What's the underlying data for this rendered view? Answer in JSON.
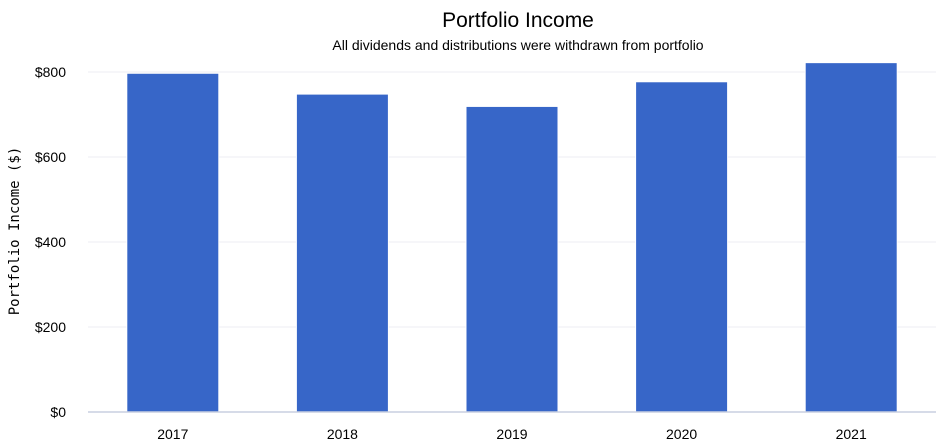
{
  "chart_data": {
    "type": "bar",
    "title": "Portfolio Income",
    "subtitle": "All dividends and distributions were withdrawn from portfolio",
    "xlabel": "",
    "ylabel": "Portfolio Income ($)",
    "categories": [
      "2017",
      "2018",
      "2019",
      "2020",
      "2021"
    ],
    "values": [
      797,
      748,
      719,
      777,
      822
    ],
    "ylim": [
      0,
      800
    ],
    "yticks": [
      0,
      200,
      400,
      600,
      800
    ],
    "ytick_labels": [
      "$0",
      "$200",
      "$400",
      "$600",
      "$800"
    ],
    "grid": true,
    "legend": "none",
    "bar_color": "#3766c8",
    "bar_edge_color": "#ffffff"
  }
}
